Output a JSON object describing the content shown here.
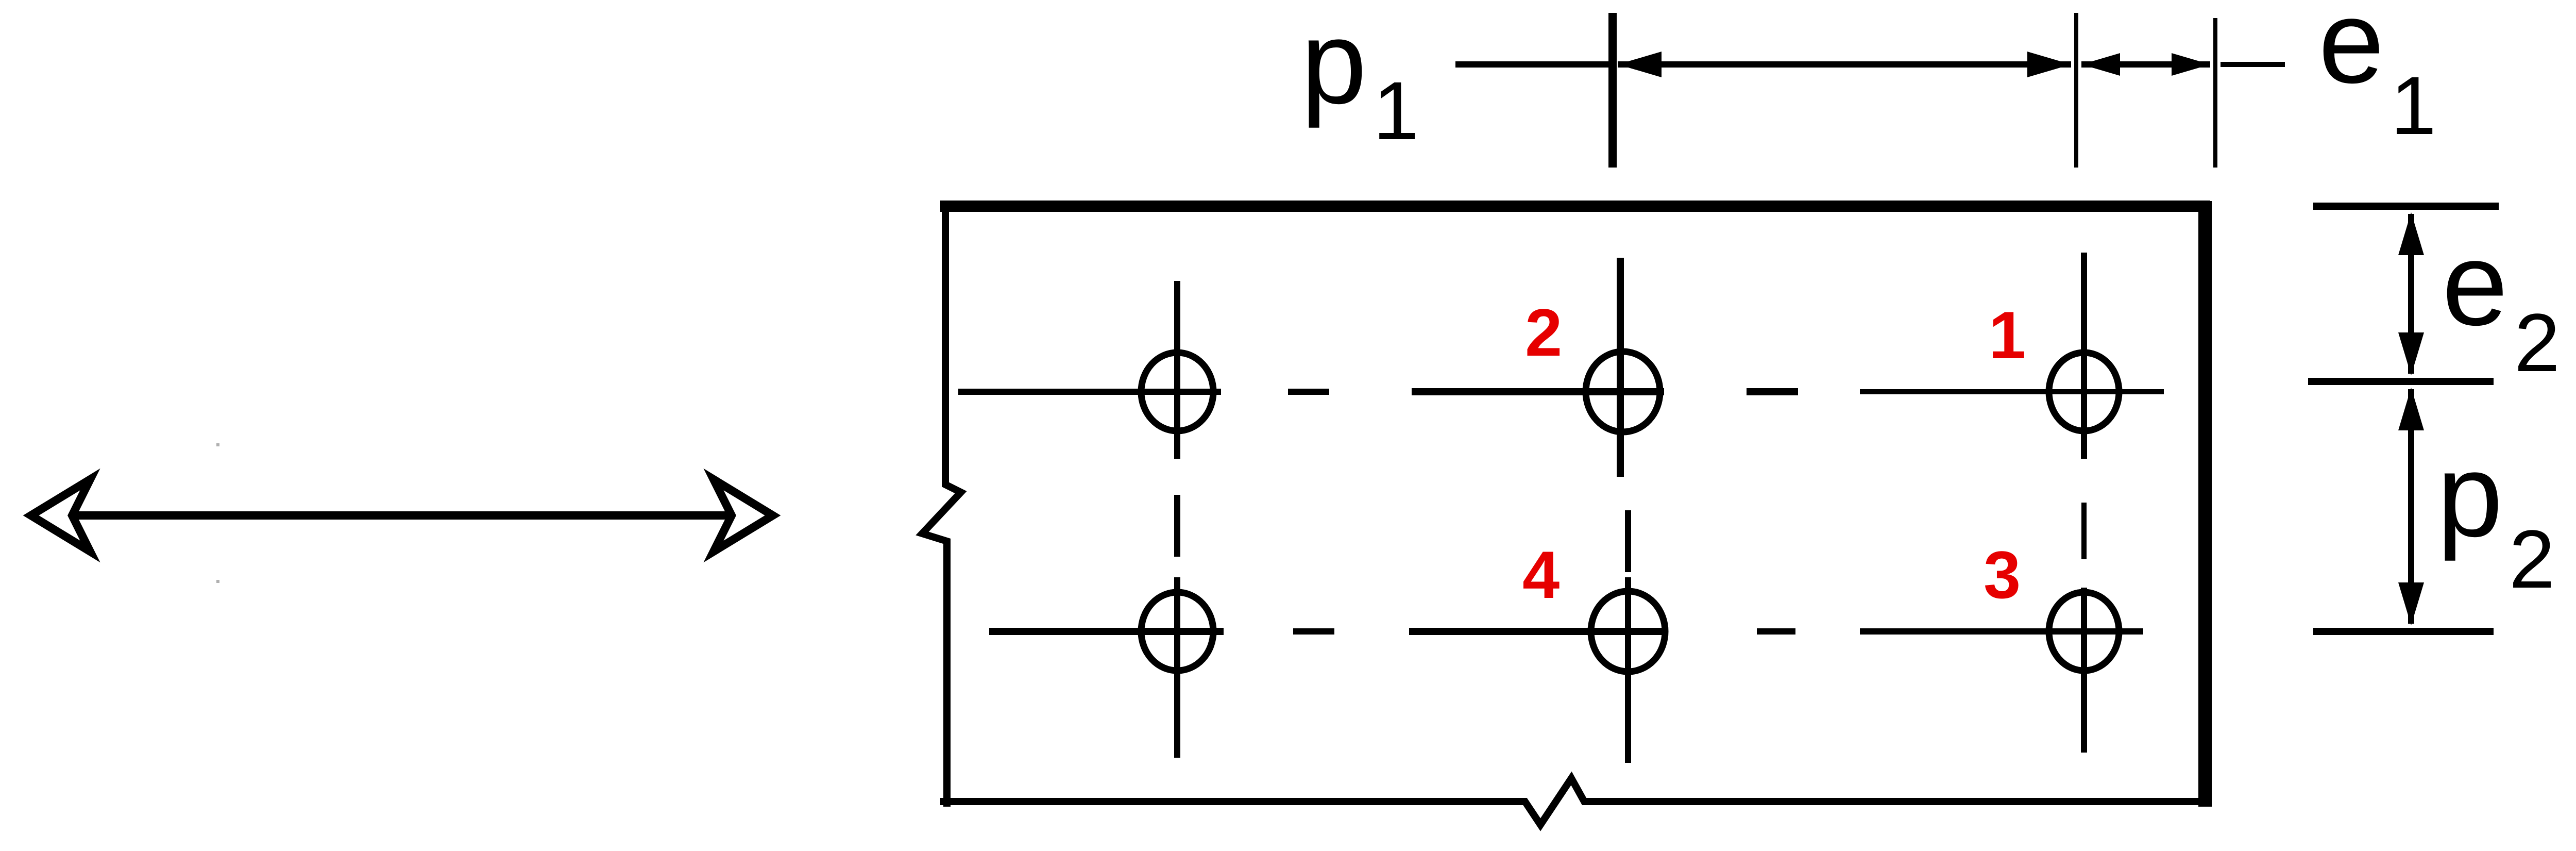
{
  "colors": {
    "line": "#000000",
    "bolt_number": "#e60000",
    "background": "#ffffff"
  },
  "dimension_labels": {
    "p1": {
      "main": "p",
      "sub": "1"
    },
    "e1": {
      "main": "e",
      "sub": "1"
    },
    "e2": {
      "main": "e",
      "sub": "2"
    },
    "p2": {
      "main": "p",
      "sub": "2"
    }
  },
  "bolts": [
    {
      "number": "1"
    },
    {
      "number": "2"
    },
    {
      "number": "3"
    },
    {
      "number": "4"
    }
  ],
  "load_arrow": {
    "icon": "double-headed-arrow-icon"
  }
}
